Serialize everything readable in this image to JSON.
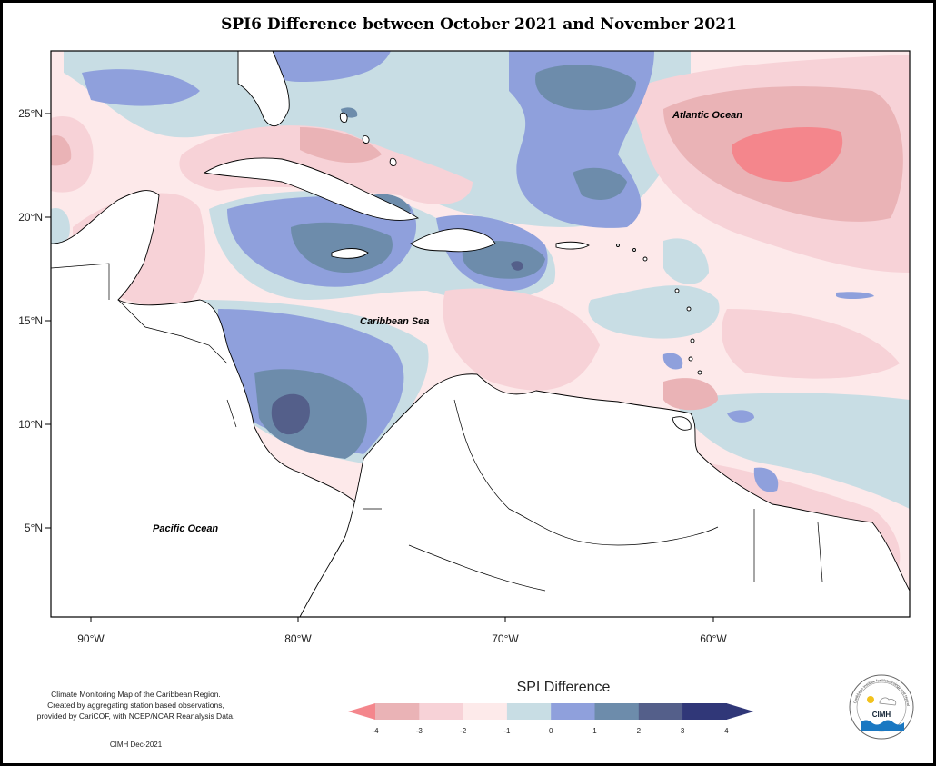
{
  "title": "SPI6 Difference between October 2021 and November 2021",
  "map": {
    "lat_ticks": [
      "25°N",
      "20°N",
      "15°N",
      "10°N",
      "5°N"
    ],
    "lon_ticks": [
      "90°W",
      "80°W",
      "70°W",
      "60°W"
    ],
    "labels": {
      "atlantic": "Atlantic Ocean",
      "caribbean": "Caribbean Sea",
      "pacific": "Pacific Ocean"
    }
  },
  "legend": {
    "title": "SPI Difference",
    "ticks": [
      "-4",
      "-3",
      "-2",
      "-1",
      "0",
      "1",
      "2",
      "3",
      "4"
    ],
    "colors": [
      "#f4868c",
      "#eab3b6",
      "#f7d2d7",
      "#fdeaea",
      "#c8dde4",
      "#8fa0dc",
      "#6d8cab",
      "#545f8a",
      "#303778"
    ]
  },
  "credit": {
    "line1": "Climate Monitoring Map of the Caribbean Region.",
    "line2": "Created by aggregating station based observations,",
    "line3": "provided by CariCOF, with NCEP/NCAR Reanalysis Data.",
    "date": "CIMH Dec-2021"
  },
  "logo": {
    "text": "CIMH",
    "ring": "Caribbean Institute for Meteorology and Hydrology"
  }
}
